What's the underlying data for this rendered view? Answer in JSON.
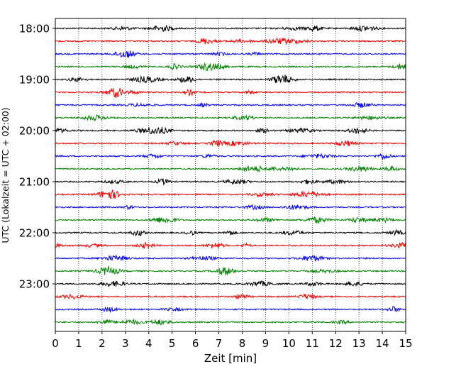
{
  "chart_data": {
    "type": "line",
    "title": "",
    "xlabel": "Zeit  [min]",
    "ylabel": "UTC (Lokalzeit = UTC + 02:00)",
    "xlim": [
      0,
      15
    ],
    "x_ticks": [
      0,
      1,
      2,
      3,
      4,
      5,
      6,
      7,
      8,
      9,
      10,
      11,
      12,
      13,
      14,
      15
    ],
    "x_tick_labels": [
      "0",
      "1",
      "2",
      "3",
      "4",
      "5",
      "6",
      "7",
      "8",
      "9",
      "10",
      "11",
      "12",
      "13",
      "14",
      "15"
    ],
    "y_tick_labels": [
      "18:00",
      "19:00",
      "20:00",
      "21:00",
      "22:00",
      "23:00"
    ],
    "grid_x": true,
    "line_colors": [
      "#000000",
      "#ff0000",
      "#0000ff",
      "#008000"
    ],
    "series": [
      {
        "start": "18:00",
        "color": "#000000"
      },
      {
        "start": "18:15",
        "color": "#ff0000"
      },
      {
        "start": "18:30",
        "color": "#0000ff"
      },
      {
        "start": "18:45",
        "color": "#008000"
      },
      {
        "start": "19:00",
        "color": "#000000"
      },
      {
        "start": "19:15",
        "color": "#ff0000"
      },
      {
        "start": "19:30",
        "color": "#0000ff"
      },
      {
        "start": "19:45",
        "color": "#008000"
      },
      {
        "start": "20:00",
        "color": "#000000"
      },
      {
        "start": "20:15",
        "color": "#ff0000"
      },
      {
        "start": "20:30",
        "color": "#0000ff"
      },
      {
        "start": "20:45",
        "color": "#008000"
      },
      {
        "start": "21:00",
        "color": "#000000"
      },
      {
        "start": "21:15",
        "color": "#ff0000"
      },
      {
        "start": "21:30",
        "color": "#0000ff"
      },
      {
        "start": "21:45",
        "color": "#008000"
      },
      {
        "start": "22:00",
        "color": "#000000"
      },
      {
        "start": "22:15",
        "color": "#ff0000"
      },
      {
        "start": "22:30",
        "color": "#0000ff"
      },
      {
        "start": "22:45",
        "color": "#008000"
      },
      {
        "start": "23:00",
        "color": "#000000"
      },
      {
        "start": "23:15",
        "color": "#ff0000"
      },
      {
        "start": "23:30",
        "color": "#0000ff"
      },
      {
        "start": "23:45",
        "color": "#008000"
      }
    ]
  }
}
